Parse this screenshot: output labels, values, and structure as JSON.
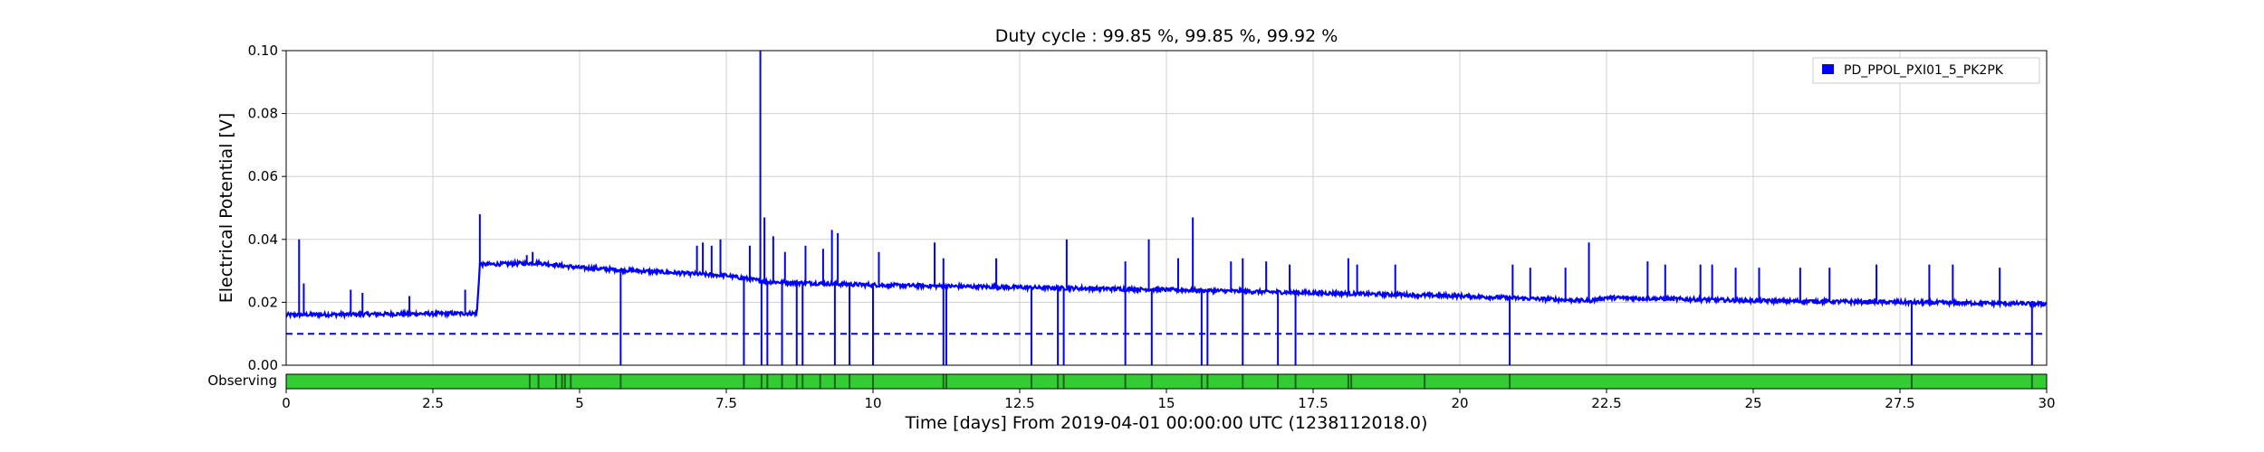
{
  "chart_data": {
    "type": "line",
    "title": "Duty cycle : 99.85 %, 99.85 %, 99.92 %",
    "xlabel": "Time [days] From 2019-04-01 00:00:00 UTC (1238112018.0)",
    "ylabel": "Electrical Potential [V]",
    "xlim": [
      0,
      30
    ],
    "ylim": [
      0,
      0.1
    ],
    "x_ticks": [
      0,
      2.5,
      5,
      7.5,
      10,
      12.5,
      15,
      17.5,
      20,
      22.5,
      25,
      27.5,
      30
    ],
    "x_tick_labels": [
      "0",
      "2.5",
      "5",
      "7.5",
      "10",
      "12.5",
      "15",
      "17.5",
      "20",
      "22.5",
      "25",
      "27.5",
      "30"
    ],
    "y_ticks": [
      0,
      0.02,
      0.04,
      0.06,
      0.08,
      0.1
    ],
    "y_tick_labels": [
      "0.00",
      "0.02",
      "0.04",
      "0.06",
      "0.08",
      "0.10"
    ],
    "grid": true,
    "legend_position": "top-right",
    "series": [
      {
        "name": "PD_PPOL_PXI01_5_PK2PK",
        "color": "#0000ff",
        "style": "solid",
        "baseline": [
          [
            0,
            0.016
          ],
          [
            3.25,
            0.0165
          ],
          [
            3.3,
            0.032
          ],
          [
            4.3,
            0.0325
          ],
          [
            5,
            0.031
          ],
          [
            7.5,
            0.0285
          ],
          [
            8.2,
            0.0265
          ],
          [
            10,
            0.0255
          ],
          [
            15,
            0.024
          ],
          [
            20,
            0.022
          ],
          [
            22.2,
            0.0205
          ],
          [
            22.5,
            0.0215
          ],
          [
            25,
            0.0205
          ],
          [
            30,
            0.0195
          ]
        ],
        "spikes": [
          [
            0.22,
            0.04
          ],
          [
            0.3,
            0.026
          ],
          [
            1.1,
            0.024
          ],
          [
            1.3,
            0.023
          ],
          [
            2.1,
            0.022
          ],
          [
            3.05,
            0.024
          ],
          [
            3.3,
            0.048
          ],
          [
            4.1,
            0.035
          ],
          [
            4.2,
            0.036
          ],
          [
            7.0,
            0.038
          ],
          [
            7.1,
            0.039
          ],
          [
            7.25,
            0.038
          ],
          [
            7.4,
            0.04
          ],
          [
            7.9,
            0.038
          ],
          [
            8.08,
            0.1
          ],
          [
            8.15,
            0.047
          ],
          [
            8.3,
            0.041
          ],
          [
            8.5,
            0.036
          ],
          [
            8.85,
            0.038
          ],
          [
            9.15,
            0.037
          ],
          [
            9.3,
            0.043
          ],
          [
            9.4,
            0.042
          ],
          [
            10.1,
            0.036
          ],
          [
            11.05,
            0.039
          ],
          [
            11.2,
            0.034
          ],
          [
            12.1,
            0.034
          ],
          [
            13.3,
            0.04
          ],
          [
            14.3,
            0.033
          ],
          [
            14.7,
            0.04
          ],
          [
            15.2,
            0.034
          ],
          [
            15.45,
            0.047
          ],
          [
            16.1,
            0.033
          ],
          [
            16.3,
            0.034
          ],
          [
            16.7,
            0.033
          ],
          [
            17.1,
            0.032
          ],
          [
            18.1,
            0.034
          ],
          [
            18.25,
            0.032
          ],
          [
            18.9,
            0.032
          ],
          [
            20.9,
            0.032
          ],
          [
            21.2,
            0.031
          ],
          [
            21.8,
            0.031
          ],
          [
            22.2,
            0.039
          ],
          [
            23.2,
            0.033
          ],
          [
            23.5,
            0.032
          ],
          [
            24.1,
            0.032
          ],
          [
            24.3,
            0.032
          ],
          [
            24.7,
            0.031
          ],
          [
            25.1,
            0.031
          ],
          [
            25.8,
            0.031
          ],
          [
            26.3,
            0.031
          ],
          [
            27.1,
            0.032
          ],
          [
            28.0,
            0.032
          ],
          [
            28.4,
            0.032
          ],
          [
            29.2,
            0.031
          ]
        ],
        "dropouts": [
          5.7,
          7.8,
          8.1,
          8.2,
          8.45,
          8.7,
          8.8,
          9.35,
          9.6,
          10.0,
          11.2,
          11.25,
          12.7,
          13.15,
          13.25,
          14.3,
          14.75,
          15.6,
          15.7,
          16.3,
          16.9,
          17.2,
          20.85,
          27.7,
          29.75
        ]
      },
      {
        "name": "",
        "color": "#0000ff",
        "style": "dashed",
        "constant": 0.01
      }
    ],
    "state_bar": {
      "label": "Observing",
      "color": "#33cc33",
      "gap_color": "#1a661a",
      "gaps": [
        4.15,
        4.3,
        4.6,
        4.7,
        4.75,
        4.85,
        5.7,
        7.8,
        8.1,
        8.2,
        8.45,
        8.7,
        8.8,
        9.1,
        9.35,
        9.6,
        10.0,
        11.2,
        11.25,
        12.7,
        13.15,
        13.25,
        14.3,
        14.75,
        15.6,
        15.7,
        16.3,
        16.9,
        17.2,
        18.1,
        18.15,
        19.4,
        20.85,
        27.7,
        29.75
      ]
    }
  }
}
